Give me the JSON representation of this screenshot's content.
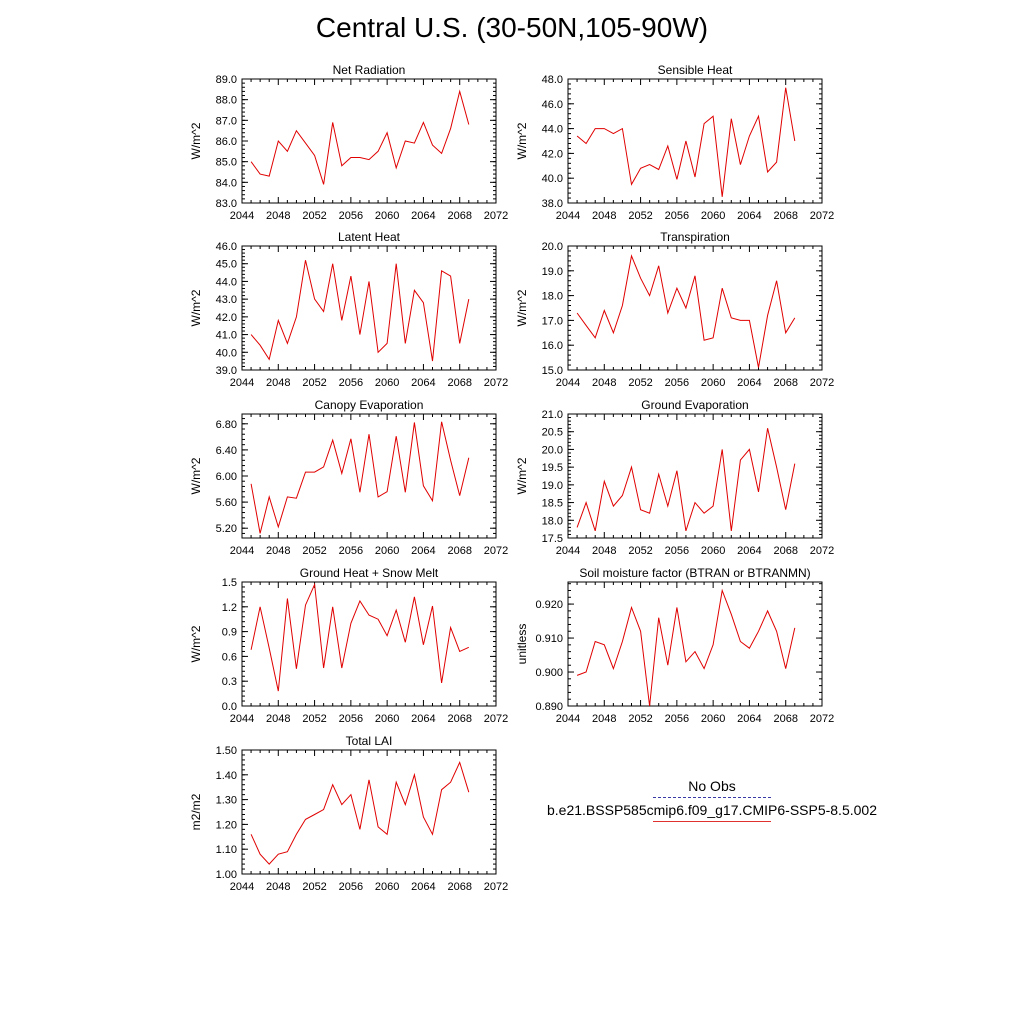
{
  "title": "Central U.S. (30-50N,105-90W)",
  "line_color": "#e00000",
  "legend": {
    "obs_label": "No Obs",
    "obs_color": "#3a3aa6",
    "model_label": "b.e21.BSSP585cmip6.f09_g17.CMIP6-SSP5-8.5.002",
    "model_color": "#e03030"
  },
  "chart_data": [
    {
      "type": "line",
      "title": "Net Radiation",
      "ylabel": "W/m^2",
      "xlim": [
        2044,
        2072
      ],
      "xticks": [
        "2044",
        "2048",
        "2052",
        "2056",
        "2060",
        "2064",
        "2068",
        "2072"
      ],
      "ylim": [
        83.0,
        89.0
      ],
      "yticks": [
        "83.0",
        "84.0",
        "85.0",
        "86.0",
        "87.0",
        "88.0",
        "89.0"
      ],
      "x": [
        2045,
        2046,
        2047,
        2048,
        2049,
        2050,
        2051,
        2052,
        2053,
        2054,
        2055,
        2056,
        2057,
        2058,
        2059,
        2060,
        2061,
        2062,
        2063,
        2064,
        2065,
        2066,
        2067,
        2068,
        2069
      ],
      "series": [
        {
          "values": [
            85.0,
            84.4,
            84.3,
            86.0,
            85.5,
            86.5,
            85.9,
            85.3,
            83.9,
            86.9,
            84.8,
            85.2,
            85.2,
            85.1,
            85.5,
            86.4,
            84.7,
            86.0,
            85.9,
            86.9,
            85.8,
            85.4,
            86.6,
            88.4,
            86.8
          ]
        }
      ]
    },
    {
      "type": "line",
      "title": "Sensible Heat",
      "ylabel": "W/m^2",
      "xlim": [
        2044,
        2072
      ],
      "xticks": [
        "2044",
        "2048",
        "2052",
        "2056",
        "2060",
        "2064",
        "2068",
        "2072"
      ],
      "ylim": [
        38.0,
        48.0
      ],
      "yticks": [
        "38.0",
        "40.0",
        "42.0",
        "44.0",
        "46.0",
        "48.0"
      ],
      "x": [
        2045,
        2046,
        2047,
        2048,
        2049,
        2050,
        2051,
        2052,
        2053,
        2054,
        2055,
        2056,
        2057,
        2058,
        2059,
        2060,
        2061,
        2062,
        2063,
        2064,
        2065,
        2066,
        2067,
        2068,
        2069
      ],
      "series": [
        {
          "values": [
            43.4,
            42.8,
            44.0,
            44.0,
            43.6,
            44.0,
            39.5,
            40.8,
            41.1,
            40.7,
            42.6,
            39.9,
            43.0,
            40.1,
            44.4,
            45.0,
            38.5,
            44.8,
            41.1,
            43.4,
            45.0,
            40.5,
            41.3,
            47.3,
            43.0
          ]
        }
      ]
    },
    {
      "type": "line",
      "title": "Latent Heat",
      "ylabel": "W/m^2",
      "xlim": [
        2044,
        2072
      ],
      "xticks": [
        "2044",
        "2048",
        "2052",
        "2056",
        "2060",
        "2064",
        "2068",
        "2072"
      ],
      "ylim": [
        39.0,
        46.0
      ],
      "yticks": [
        "39.0",
        "40.0",
        "41.0",
        "42.0",
        "43.0",
        "44.0",
        "45.0",
        "46.0"
      ],
      "x": [
        2045,
        2046,
        2047,
        2048,
        2049,
        2050,
        2051,
        2052,
        2053,
        2054,
        2055,
        2056,
        2057,
        2058,
        2059,
        2060,
        2061,
        2062,
        2063,
        2064,
        2065,
        2066,
        2067,
        2068,
        2069
      ],
      "series": [
        {
          "values": [
            41.0,
            40.4,
            39.6,
            41.8,
            40.5,
            42.0,
            45.2,
            43.0,
            42.3,
            45.0,
            41.8,
            44.3,
            41.0,
            44.0,
            40.0,
            40.5,
            45.0,
            40.5,
            43.5,
            42.8,
            39.5,
            44.6,
            44.3,
            40.5,
            43.0
          ]
        }
      ]
    },
    {
      "type": "line",
      "title": "Transpiration",
      "ylabel": "W/m^2",
      "xlim": [
        2044,
        2072
      ],
      "xticks": [
        "2044",
        "2048",
        "2052",
        "2056",
        "2060",
        "2064",
        "2068",
        "2072"
      ],
      "ylim": [
        15.0,
        20.0
      ],
      "yticks": [
        "15.0",
        "16.0",
        "17.0",
        "18.0",
        "19.0",
        "20.0"
      ],
      "x": [
        2045,
        2046,
        2047,
        2048,
        2049,
        2050,
        2051,
        2052,
        2053,
        2054,
        2055,
        2056,
        2057,
        2058,
        2059,
        2060,
        2061,
        2062,
        2063,
        2064,
        2065,
        2066,
        2067,
        2068,
        2069
      ],
      "series": [
        {
          "values": [
            17.3,
            16.8,
            16.3,
            17.4,
            16.5,
            17.6,
            19.6,
            18.7,
            18.0,
            19.2,
            17.3,
            18.3,
            17.5,
            18.8,
            16.2,
            16.3,
            18.3,
            17.1,
            17.0,
            17.0,
            15.1,
            17.2,
            18.6,
            16.5,
            17.1
          ]
        }
      ]
    },
    {
      "type": "line",
      "title": "Canopy Evaporation",
      "ylabel": "W/m^2",
      "xlim": [
        2044,
        2072
      ],
      "xticks": [
        "2044",
        "2048",
        "2052",
        "2056",
        "2060",
        "2064",
        "2068",
        "2072"
      ],
      "ylim": [
        5.05,
        6.95
      ],
      "yticks": [
        "5.20",
        "5.60",
        "6.00",
        "6.40",
        "6.80"
      ],
      "ytick_values": [
        5.2,
        5.6,
        6.0,
        6.4,
        6.8
      ],
      "x": [
        2045,
        2046,
        2047,
        2048,
        2049,
        2050,
        2051,
        2052,
        2053,
        2054,
        2055,
        2056,
        2057,
        2058,
        2059,
        2060,
        2061,
        2062,
        2063,
        2064,
        2065,
        2066,
        2067,
        2068,
        2069
      ],
      "series": [
        {
          "values": [
            5.88,
            5.12,
            5.68,
            5.22,
            5.68,
            5.66,
            6.06,
            6.06,
            6.14,
            6.55,
            6.04,
            6.57,
            5.75,
            6.64,
            5.68,
            5.76,
            6.61,
            5.75,
            6.82,
            5.85,
            5.62,
            6.83,
            6.24,
            5.7,
            6.28
          ]
        }
      ]
    },
    {
      "type": "line",
      "title": "Ground Evaporation",
      "ylabel": "W/m^2",
      "xlim": [
        2044,
        2072
      ],
      "xticks": [
        "2044",
        "2048",
        "2052",
        "2056",
        "2060",
        "2064",
        "2068",
        "2072"
      ],
      "ylim": [
        17.5,
        21.0
      ],
      "yticks": [
        "17.5",
        "18.0",
        "18.5",
        "19.0",
        "19.5",
        "20.0",
        "20.5",
        "21.0"
      ],
      "x": [
        2045,
        2046,
        2047,
        2048,
        2049,
        2050,
        2051,
        2052,
        2053,
        2054,
        2055,
        2056,
        2057,
        2058,
        2059,
        2060,
        2061,
        2062,
        2063,
        2064,
        2065,
        2066,
        2067,
        2068,
        2069
      ],
      "series": [
        {
          "values": [
            17.8,
            18.5,
            17.7,
            19.1,
            18.4,
            18.7,
            19.5,
            18.3,
            18.2,
            19.3,
            18.4,
            19.4,
            17.7,
            18.5,
            18.2,
            18.4,
            20.0,
            17.7,
            19.7,
            20.0,
            18.8,
            20.6,
            19.5,
            18.3,
            19.6
          ]
        }
      ]
    },
    {
      "type": "line",
      "title": "Ground Heat + Snow Melt",
      "ylabel": "W/m^2",
      "xlim": [
        2044,
        2072
      ],
      "xticks": [
        "2044",
        "2048",
        "2052",
        "2056",
        "2060",
        "2064",
        "2068",
        "2072"
      ],
      "ylim": [
        0.0,
        1.5
      ],
      "yticks": [
        "0.0",
        "0.3",
        "0.6",
        "0.9",
        "1.2",
        "1.5"
      ],
      "x": [
        2045,
        2046,
        2047,
        2048,
        2049,
        2050,
        2051,
        2052,
        2053,
        2054,
        2055,
        2056,
        2057,
        2058,
        2059,
        2060,
        2061,
        2062,
        2063,
        2064,
        2065,
        2066,
        2067,
        2068,
        2069
      ],
      "series": [
        {
          "values": [
            0.68,
            1.2,
            0.7,
            0.18,
            1.3,
            0.45,
            1.22,
            1.47,
            0.46,
            1.2,
            0.46,
            1.0,
            1.27,
            1.1,
            1.05,
            0.85,
            1.16,
            0.77,
            1.32,
            0.74,
            1.21,
            0.28,
            0.95,
            0.66,
            0.71
          ]
        }
      ]
    },
    {
      "type": "line",
      "title": "Soil moisture factor (BTRAN or BTRANMN)",
      "ylabel": "unitless",
      "xlim": [
        2044,
        2072
      ],
      "xticks": [
        "2044",
        "2048",
        "2052",
        "2056",
        "2060",
        "2064",
        "2068",
        "2072"
      ],
      "ylim": [
        0.89,
        0.9265
      ],
      "yticks": [
        "0.890",
        "0.900",
        "0.910",
        "0.920"
      ],
      "ytick_values": [
        0.89,
        0.9,
        0.91,
        0.92
      ],
      "x": [
        2045,
        2046,
        2047,
        2048,
        2049,
        2050,
        2051,
        2052,
        2053,
        2054,
        2055,
        2056,
        2057,
        2058,
        2059,
        2060,
        2061,
        2062,
        2063,
        2064,
        2065,
        2066,
        2067,
        2068,
        2069
      ],
      "series": [
        {
          "values": [
            0.899,
            0.9,
            0.909,
            0.908,
            0.901,
            0.909,
            0.919,
            0.912,
            0.89,
            0.916,
            0.902,
            0.919,
            0.903,
            0.906,
            0.901,
            0.908,
            0.924,
            0.917,
            0.909,
            0.907,
            0.912,
            0.918,
            0.912,
            0.901,
            0.913
          ]
        }
      ]
    },
    {
      "type": "line",
      "title": "Total LAI",
      "ylabel": "m2/m2",
      "xlim": [
        2044,
        2072
      ],
      "xticks": [
        "2044",
        "2048",
        "2052",
        "2056",
        "2060",
        "2064",
        "2068",
        "2072"
      ],
      "ylim": [
        1.0,
        1.5
      ],
      "yticks": [
        "1.00",
        "1.10",
        "1.20",
        "1.30",
        "1.40",
        "1.50"
      ],
      "x": [
        2045,
        2046,
        2047,
        2048,
        2049,
        2050,
        2051,
        2052,
        2053,
        2054,
        2055,
        2056,
        2057,
        2058,
        2059,
        2060,
        2061,
        2062,
        2063,
        2064,
        2065,
        2066,
        2067,
        2068,
        2069
      ],
      "series": [
        {
          "values": [
            1.16,
            1.08,
            1.04,
            1.08,
            1.09,
            1.16,
            1.22,
            1.24,
            1.26,
            1.36,
            1.28,
            1.32,
            1.18,
            1.38,
            1.19,
            1.16,
            1.37,
            1.28,
            1.4,
            1.23,
            1.16,
            1.34,
            1.37,
            1.45,
            1.33
          ]
        }
      ]
    }
  ]
}
